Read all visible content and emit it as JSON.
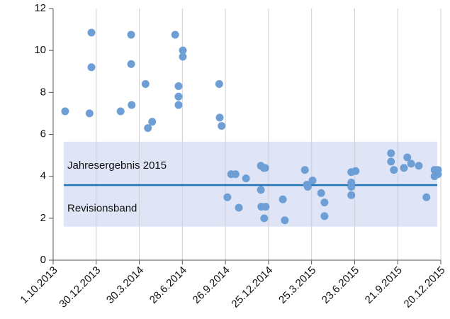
{
  "chart_data": {
    "type": "scatter",
    "x": [
      "2013-10-26",
      "2013-12-16",
      "2013-12-20",
      "2013-12-20",
      "2014-02-19",
      "2014-03-13",
      "2014-03-13",
      "2014-03-14",
      "2014-04-12",
      "2014-04-17",
      "2014-04-26",
      "2014-06-13",
      "2014-06-29",
      "2014-06-29",
      "2014-06-20",
      "2014-06-20",
      "2014-06-20",
      "2014-09-13",
      "2014-09-14",
      "2014-09-18",
      "2014-09-30",
      "2014-10-08",
      "2014-10-17",
      "2014-10-24",
      "2014-11-08",
      "2014-12-09",
      "2014-12-15",
      "2014-12-18",
      "2014-12-09",
      "2014-12-10",
      "2014-12-19",
      "2014-12-16",
      "2015-01-24",
      "2015-01-28",
      "2015-03-11",
      "2015-03-15",
      "2015-03-17",
      "2015-03-27",
      "2015-04-14",
      "2015-04-21",
      "2015-04-21",
      "2015-06-16",
      "2015-06-25",
      "2015-06-16",
      "2015-06-16",
      "2015-06-16",
      "2015-09-07",
      "2015-09-07",
      "2015-09-13",
      "2015-10-04",
      "2015-10-11",
      "2015-10-19",
      "2015-11-04",
      "2015-11-20",
      "2015-12-07",
      "2015-12-07",
      "2015-12-14",
      "2015-12-14"
    ],
    "values": [
      7.1,
      7.0,
      10.85,
      9.2,
      7.1,
      10.75,
      9.35,
      7.4,
      8.4,
      6.3,
      6.6,
      10.75,
      10.0,
      9.7,
      8.3,
      7.8,
      7.4,
      8.4,
      6.8,
      6.4,
      3.0,
      4.1,
      4.1,
      2.5,
      3.9,
      4.5,
      4.4,
      4.4,
      3.35,
      2.55,
      2.55,
      2.0,
      2.9,
      1.9,
      4.3,
      3.6,
      3.5,
      3.8,
      3.2,
      2.75,
      2.1,
      4.2,
      4.25,
      3.7,
      3.5,
      3.1,
      5.1,
      4.7,
      4.3,
      4.4,
      4.9,
      4.6,
      4.5,
      3.0,
      4.3,
      4.0,
      4.3,
      4.1
    ],
    "color": "#6d9fd6",
    "xlim": [
      "2013-10-01",
      "2015-12-20"
    ],
    "xticks": [
      {
        "value": "2013-10-01",
        "label": "1.10.2013"
      },
      {
        "value": "2013-12-30",
        "label": "30.12.2013"
      },
      {
        "value": "2014-03-30",
        "label": "30.3.2014"
      },
      {
        "value": "2014-06-28",
        "label": "28.6.2014"
      },
      {
        "value": "2014-09-26",
        "label": "26.9.2014"
      },
      {
        "value": "2014-12-25",
        "label": "25.12.2014"
      },
      {
        "value": "2015-03-25",
        "label": "25.3.2015"
      },
      {
        "value": "2015-06-23",
        "label": "23.6.2015"
      },
      {
        "value": "2015-09-21",
        "label": "21.9.2015"
      },
      {
        "value": "2015-12-20",
        "label": "20.12.2015"
      }
    ],
    "ylim": [
      0,
      12
    ],
    "yticks": [
      0,
      2,
      4,
      6,
      8,
      10,
      12
    ],
    "band": {
      "range": [
        1.6,
        5.65
      ],
      "label": "Revisionsband",
      "color": "#dfe5f6"
    },
    "reference": {
      "value": 3.58,
      "label": "Jahresergebnis 2015",
      "color": "#1f74b8"
    },
    "grid": true
  }
}
